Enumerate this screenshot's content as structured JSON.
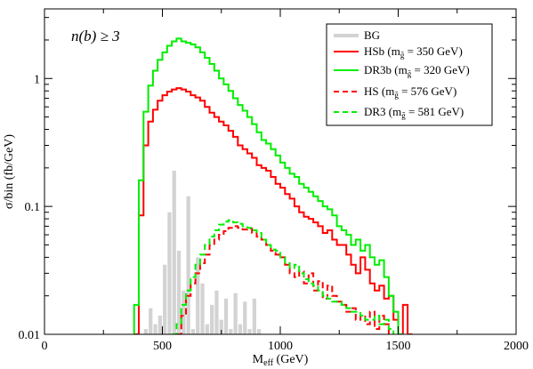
{
  "chart_data": {
    "type": "line",
    "annotation": "n(b) ≥ 3",
    "xlabel": {
      "main": "M",
      "sub": "eff",
      "rest": " (GeV)"
    },
    "ylabel": "σ/bin (fb/GeV)",
    "xlim": [
      0,
      2000
    ],
    "ylim": [
      0.01,
      3.5
    ],
    "yscale": "log",
    "x_ticks": [
      0,
      500,
      1000,
      1500,
      2000
    ],
    "x_tick_labels": [
      "0",
      "500",
      "1000",
      "1500",
      "2000"
    ],
    "y_ticks": [
      0.01,
      0.1,
      1
    ],
    "y_tick_labels": [
      "0.01",
      "0.1",
      "1"
    ],
    "legend_position": "top-right",
    "series": [
      {
        "name": "BG",
        "kind": "bars",
        "color": "#d3d3d3",
        "bin_width": 20,
        "x": [
          420,
          440,
          460,
          480,
          500,
          520,
          540,
          560,
          580,
          600,
          620,
          640,
          660,
          680,
          700,
          720,
          740,
          760,
          780,
          800,
          820,
          840,
          860,
          880,
          900
        ],
        "values": [
          0.011,
          0.016,
          0.012,
          0.014,
          0.035,
          0.09,
          0.19,
          0.045,
          0.022,
          0.12,
          0.011,
          0.04,
          0.025,
          0.012,
          0.017,
          0.022,
          0.013,
          0.019,
          0.011,
          0.021,
          0.012,
          0.018,
          0.011,
          0.019,
          0.011
        ]
      },
      {
        "name": "HSb",
        "legend_label": {
          "main": "HSb (m",
          "sub": "g̃",
          "rest": " = 350 GeV)"
        },
        "kind": "step",
        "color": "#ff0000",
        "dashed": false,
        "bin_width": 20,
        "x": [
          380,
          400,
          420,
          440,
          460,
          480,
          500,
          520,
          540,
          560,
          580,
          600,
          620,
          640,
          660,
          680,
          700,
          720,
          740,
          760,
          780,
          800,
          820,
          840,
          860,
          880,
          900,
          920,
          940,
          960,
          980,
          1000,
          1020,
          1040,
          1060,
          1080,
          1100,
          1120,
          1140,
          1160,
          1180,
          1200,
          1220,
          1240,
          1260,
          1280,
          1300,
          1320,
          1340,
          1360,
          1380,
          1400,
          1420,
          1440,
          1460,
          1480,
          1500,
          1520,
          1540
        ],
        "values": [
          0.01,
          0.085,
          0.3,
          0.46,
          0.57,
          0.67,
          0.74,
          0.79,
          0.82,
          0.84,
          0.82,
          0.79,
          0.74,
          0.71,
          0.67,
          0.6,
          0.54,
          0.5,
          0.46,
          0.43,
          0.39,
          0.35,
          0.3,
          0.28,
          0.26,
          0.24,
          0.21,
          0.2,
          0.19,
          0.17,
          0.15,
          0.14,
          0.125,
          0.115,
          0.1,
          0.09,
          0.083,
          0.08,
          0.075,
          0.07,
          0.062,
          0.065,
          0.055,
          0.05,
          0.05,
          0.042,
          0.035,
          0.03,
          0.04,
          0.032,
          0.025,
          0.022,
          0.024,
          0.019,
          0.02,
          0.013,
          0.01,
          0.017,
          0.01
        ]
      },
      {
        "name": "DR3b",
        "legend_label": {
          "main": "DR3b (m",
          "sub": "g̃",
          "rest": " = 320 GeV)"
        },
        "kind": "step",
        "color": "#00ee00",
        "dashed": false,
        "bin_width": 20,
        "x": [
          380,
          400,
          420,
          440,
          460,
          480,
          500,
          520,
          540,
          560,
          580,
          600,
          620,
          640,
          660,
          680,
          700,
          720,
          740,
          760,
          780,
          800,
          820,
          840,
          860,
          880,
          900,
          920,
          940,
          960,
          980,
          1000,
          1020,
          1040,
          1060,
          1080,
          1100,
          1120,
          1140,
          1160,
          1180,
          1200,
          1220,
          1240,
          1260,
          1280,
          1300,
          1320,
          1340,
          1360,
          1380,
          1400,
          1420,
          1440,
          1460,
          1480,
          1500
        ],
        "values": [
          0.017,
          0.16,
          0.55,
          0.88,
          1.15,
          1.4,
          1.6,
          1.8,
          1.95,
          2.05,
          1.95,
          1.9,
          1.85,
          1.75,
          1.6,
          1.45,
          1.3,
          1.15,
          1.0,
          0.9,
          0.8,
          0.7,
          0.62,
          0.56,
          0.5,
          0.44,
          0.38,
          0.33,
          0.31,
          0.28,
          0.25,
          0.22,
          0.2,
          0.18,
          0.17,
          0.15,
          0.14,
          0.13,
          0.12,
          0.11,
          0.1,
          0.095,
          0.085,
          0.07,
          0.065,
          0.06,
          0.05,
          0.055,
          0.045,
          0.05,
          0.04,
          0.035,
          0.038,
          0.028,
          0.02,
          0.015,
          0.01
        ]
      },
      {
        "name": "HS",
        "legend_label": {
          "main": "HS (m",
          "sub": "g̃",
          "rest": " = 576 GeV)"
        },
        "kind": "step",
        "color": "#ff0000",
        "dashed": true,
        "bin_width": 20,
        "x": [
          560,
          580,
          600,
          620,
          640,
          660,
          680,
          700,
          720,
          740,
          760,
          780,
          800,
          820,
          840,
          860,
          880,
          900,
          920,
          940,
          960,
          980,
          1000,
          1020,
          1040,
          1060,
          1080,
          1100,
          1120,
          1140,
          1160,
          1180,
          1200,
          1220,
          1240,
          1260,
          1280,
          1300,
          1320,
          1340,
          1360,
          1380,
          1400,
          1420,
          1440,
          1460
        ],
        "values": [
          0.01,
          0.014,
          0.02,
          0.025,
          0.03,
          0.036,
          0.042,
          0.05,
          0.055,
          0.06,
          0.064,
          0.068,
          0.07,
          0.068,
          0.066,
          0.067,
          0.062,
          0.058,
          0.055,
          0.05,
          0.045,
          0.042,
          0.04,
          0.035,
          0.03,
          0.028,
          0.031,
          0.025,
          0.03,
          0.022,
          0.026,
          0.019,
          0.024,
          0.02,
          0.018,
          0.017,
          0.015,
          0.016,
          0.013,
          0.014,
          0.012,
          0.015,
          0.011,
          0.014,
          0.012,
          0.01
        ]
      },
      {
        "name": "DR3",
        "legend_label": {
          "main": "DR3 (m",
          "sub": "g̃",
          "rest": " = 581 GeV)"
        },
        "kind": "step",
        "color": "#00ee00",
        "dashed": true,
        "bin_width": 20,
        "x": [
          540,
          560,
          580,
          600,
          620,
          640,
          660,
          680,
          700,
          720,
          740,
          760,
          780,
          800,
          820,
          840,
          860,
          880,
          900,
          920,
          940,
          960,
          980,
          1000,
          1020,
          1040,
          1060,
          1080,
          1100,
          1120,
          1140,
          1160,
          1180,
          1200,
          1220,
          1240,
          1260,
          1280,
          1300,
          1320,
          1340,
          1360,
          1380,
          1400,
          1420,
          1440,
          1460
        ],
        "values": [
          0.01,
          0.012,
          0.017,
          0.022,
          0.028,
          0.035,
          0.042,
          0.05,
          0.058,
          0.065,
          0.072,
          0.076,
          0.078,
          0.075,
          0.073,
          0.07,
          0.068,
          0.065,
          0.062,
          0.055,
          0.05,
          0.046,
          0.045,
          0.04,
          0.036,
          0.033,
          0.035,
          0.03,
          0.027,
          0.025,
          0.024,
          0.022,
          0.02,
          0.019,
          0.018,
          0.018,
          0.017,
          0.016,
          0.015,
          0.015,
          0.014,
          0.013,
          0.013,
          0.014,
          0.012,
          0.013,
          0.011
        ]
      }
    ]
  }
}
